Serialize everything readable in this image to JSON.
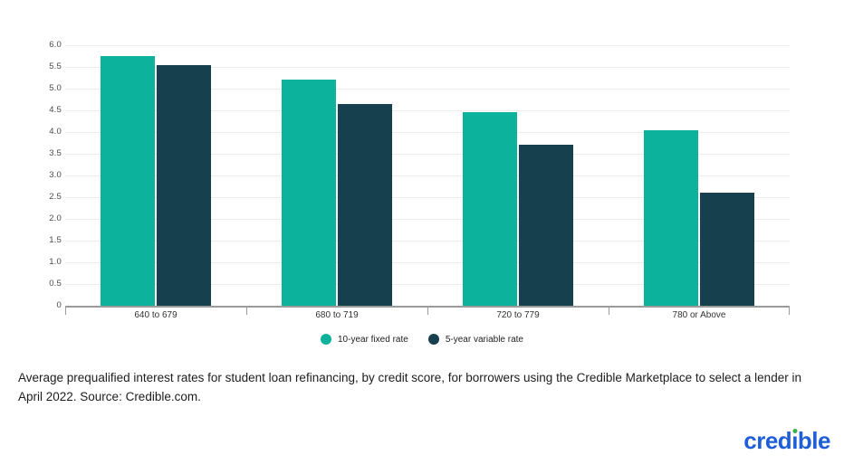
{
  "chart_data": {
    "type": "bar",
    "title": "",
    "categories": [
      "640 to 679",
      "680 to 719",
      "720 to 779",
      "780 or Above"
    ],
    "series": [
      {
        "name": "10-year fixed rate",
        "color": "#0CB29B",
        "values": [
          5.75,
          5.2,
          4.45,
          4.05
        ]
      },
      {
        "name": "5-year variable rate",
        "color": "#17404F",
        "values": [
          5.55,
          4.65,
          3.7,
          2.6
        ]
      }
    ],
    "xlabel": "",
    "ylabel": "",
    "ylim": [
      0,
      6.0
    ],
    "y_ticks": [
      {
        "value": 6.0,
        "label": "6.0"
      },
      {
        "value": 5.5,
        "label": "5.5"
      },
      {
        "value": 5.0,
        "label": "5.0"
      },
      {
        "value": 4.5,
        "label": "4.5"
      },
      {
        "value": 4.0,
        "label": "4.0"
      },
      {
        "value": 3.5,
        "label": "3.5"
      },
      {
        "value": 3.0,
        "label": "3.0"
      },
      {
        "value": 2.5,
        "label": "2.5"
      },
      {
        "value": 2.0,
        "label": "2.0"
      },
      {
        "value": 1.5,
        "label": "1.5"
      },
      {
        "value": 1.0,
        "label": "1.0"
      },
      {
        "value": 0.5,
        "label": "0.5"
      },
      {
        "value": 0,
        "label": "0"
      }
    ],
    "grid": "horizontal",
    "legend_position": "bottom"
  },
  "caption": {
    "text": "Average prequalified interest rates for student loan refinancing, by credit score, for borrowers using the Credible Marketplace to select a lender in April 2022. Source: Credible.com."
  },
  "branding": {
    "logo_text": "credible",
    "logo_color": "#1e5ed6",
    "logo_dot_color": "#35b34a"
  }
}
